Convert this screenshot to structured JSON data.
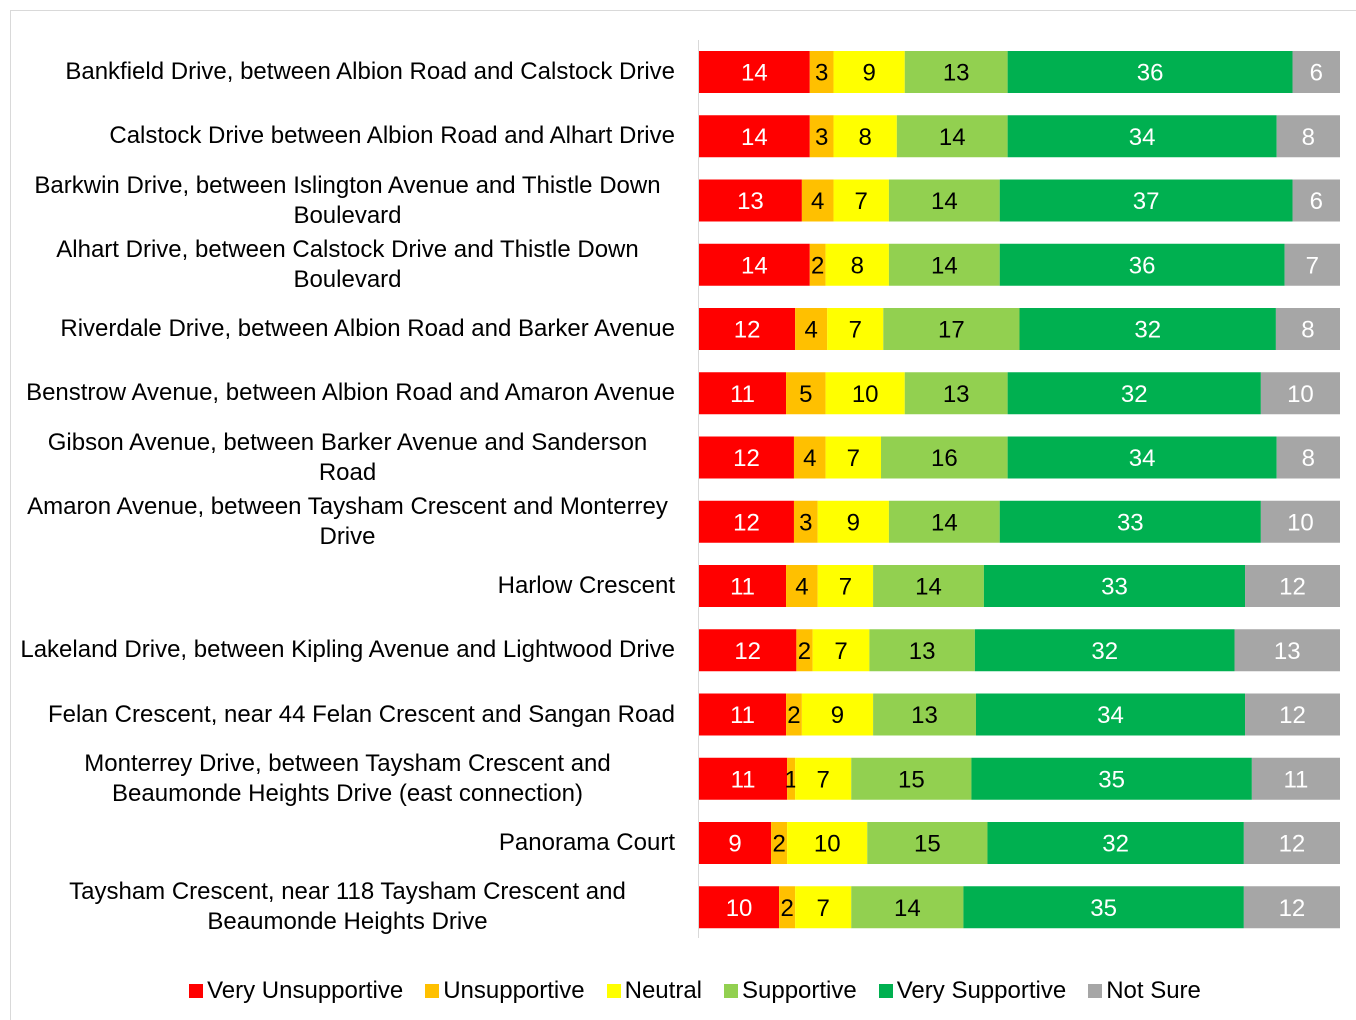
{
  "chart_data": {
    "type": "stacked-bar-100",
    "categories": [
      "Bankfield Drive, between Albion Road and Calstock Drive",
      "Calstock Drive between Albion Road and Alhart Drive",
      "Barkwin Drive, between Islington Avenue and Thistle Down Boulevard",
      "Alhart Drive, between Calstock Drive and Thistle Down Boulevard",
      "Riverdale Drive, between Albion Road and Barker Avenue",
      "Benstrow Avenue, between Albion Road and Amaron Avenue",
      "Gibson Avenue, between Barker Avenue and Sanderson Road",
      "Amaron Avenue, between Taysham Crescent and Monterrey Drive",
      "Harlow Crescent",
      "Lakeland Drive, between Kipling Avenue and Lightwood Drive",
      "Felan Crescent, near 44 Felan Crescent and Sangan Road",
      "Monterrey Drive, between Taysham Crescent and Beaumonde Heights Drive (east connection)",
      "Panorama Court",
      "Taysham Crescent, near 118 Taysham Crescent and Beaumonde Heights Drive"
    ],
    "series": [
      {
        "name": "Very Unsupportive",
        "color": "#ff0000",
        "label_color": "#ffffff",
        "values": [
          14,
          14,
          13,
          14,
          12,
          11,
          12,
          12,
          11,
          12,
          11,
          11,
          9,
          10
        ]
      },
      {
        "name": "Unsupportive",
        "color": "#ffc000",
        "label_color": "#000000",
        "values": [
          3,
          3,
          4,
          2,
          4,
          5,
          4,
          3,
          4,
          2,
          2,
          1,
          2,
          2
        ]
      },
      {
        "name": "Neutral",
        "color": "#ffff00",
        "label_color": "#000000",
        "values": [
          9,
          8,
          7,
          8,
          7,
          10,
          7,
          9,
          7,
          7,
          9,
          7,
          10,
          7
        ]
      },
      {
        "name": "Supportive",
        "color": "#92d050",
        "label_color": "#000000",
        "values": [
          13,
          14,
          14,
          14,
          17,
          13,
          16,
          14,
          14,
          13,
          13,
          15,
          15,
          14
        ]
      },
      {
        "name": "Very Supportive",
        "color": "#00b050",
        "label_color": "#ffffff",
        "values": [
          36,
          34,
          37,
          36,
          32,
          32,
          34,
          33,
          33,
          32,
          34,
          35,
          32,
          35
        ]
      },
      {
        "name": "Not Sure",
        "color": "#a6a6a6",
        "label_color": "#ffffff",
        "values": [
          6,
          8,
          6,
          7,
          8,
          10,
          8,
          10,
          12,
          13,
          12,
          11,
          12,
          12
        ]
      }
    ],
    "legend": "bottom"
  }
}
